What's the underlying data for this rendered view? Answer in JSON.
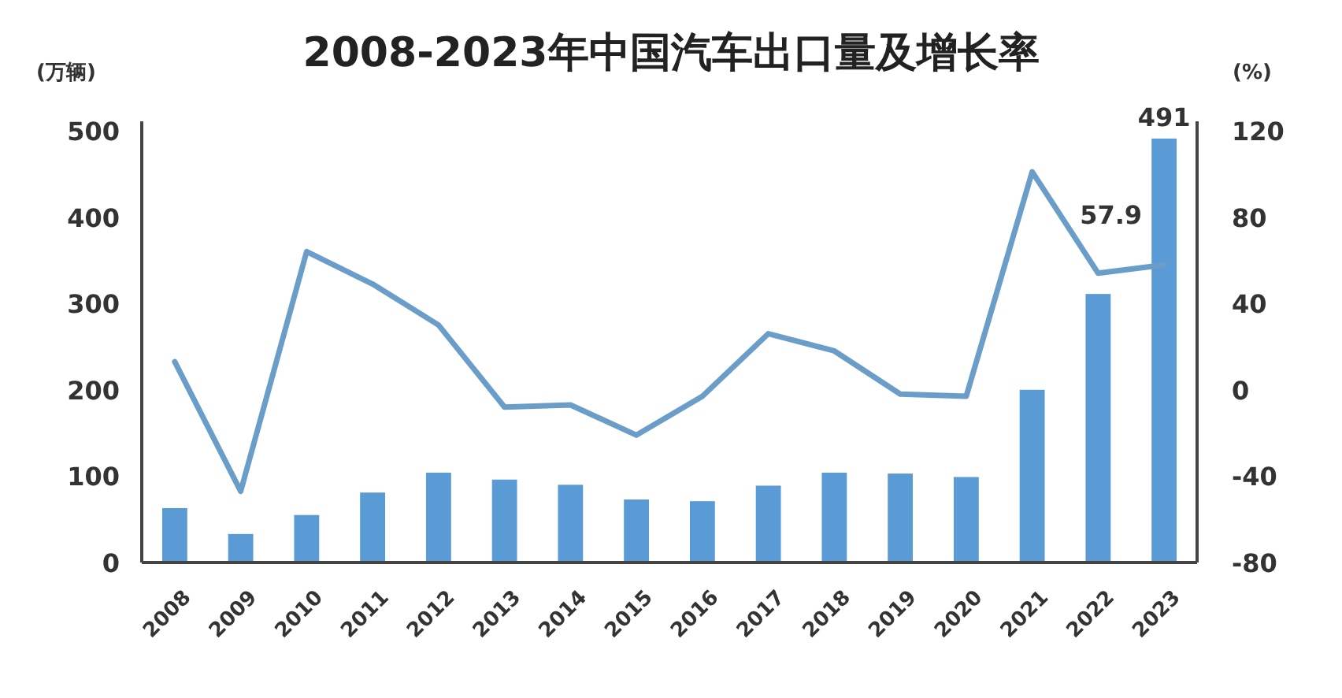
{
  "chart_data": {
    "type": "bar",
    "title": "2008-2023年中国汽车出口量及增长率",
    "ylabel": "(万辆)",
    "y2label": "(%)",
    "categories": [
      "2008",
      "2009",
      "2010",
      "2011",
      "2012",
      "2013",
      "2014",
      "2015",
      "2016",
      "2017",
      "2018",
      "2019",
      "2020",
      "2021",
      "2022",
      "2023"
    ],
    "ylim": [
      0,
      500
    ],
    "yticks": [
      0,
      100,
      200,
      300,
      400,
      500
    ],
    "y2lim": [
      -80,
      120
    ],
    "y2ticks": [
      -80,
      -40,
      0,
      40,
      80,
      120
    ],
    "series": [
      {
        "color": "#5b9bd5",
        "values": [
          63,
          33,
          55,
          81,
          104,
          96,
          90,
          73,
          71,
          89,
          104,
          103,
          99,
          200,
          311,
          491
        ],
        "value_labels": [
          null,
          null,
          null,
          null,
          null,
          null,
          null,
          null,
          null,
          null,
          null,
          null,
          null,
          null,
          null,
          "491"
        ]
      },
      {
        "type": "line",
        "axis": "y2",
        "color": "#6b9dc9",
        "values": [
          13,
          -47,
          64,
          49,
          30,
          -8,
          -7,
          -21,
          -3,
          26,
          18,
          -2,
          -3,
          101,
          54,
          57.9
        ],
        "value_labels": [
          null,
          null,
          null,
          null,
          null,
          null,
          null,
          null,
          null,
          null,
          null,
          null,
          null,
          null,
          null,
          "57.9"
        ]
      }
    ]
  }
}
